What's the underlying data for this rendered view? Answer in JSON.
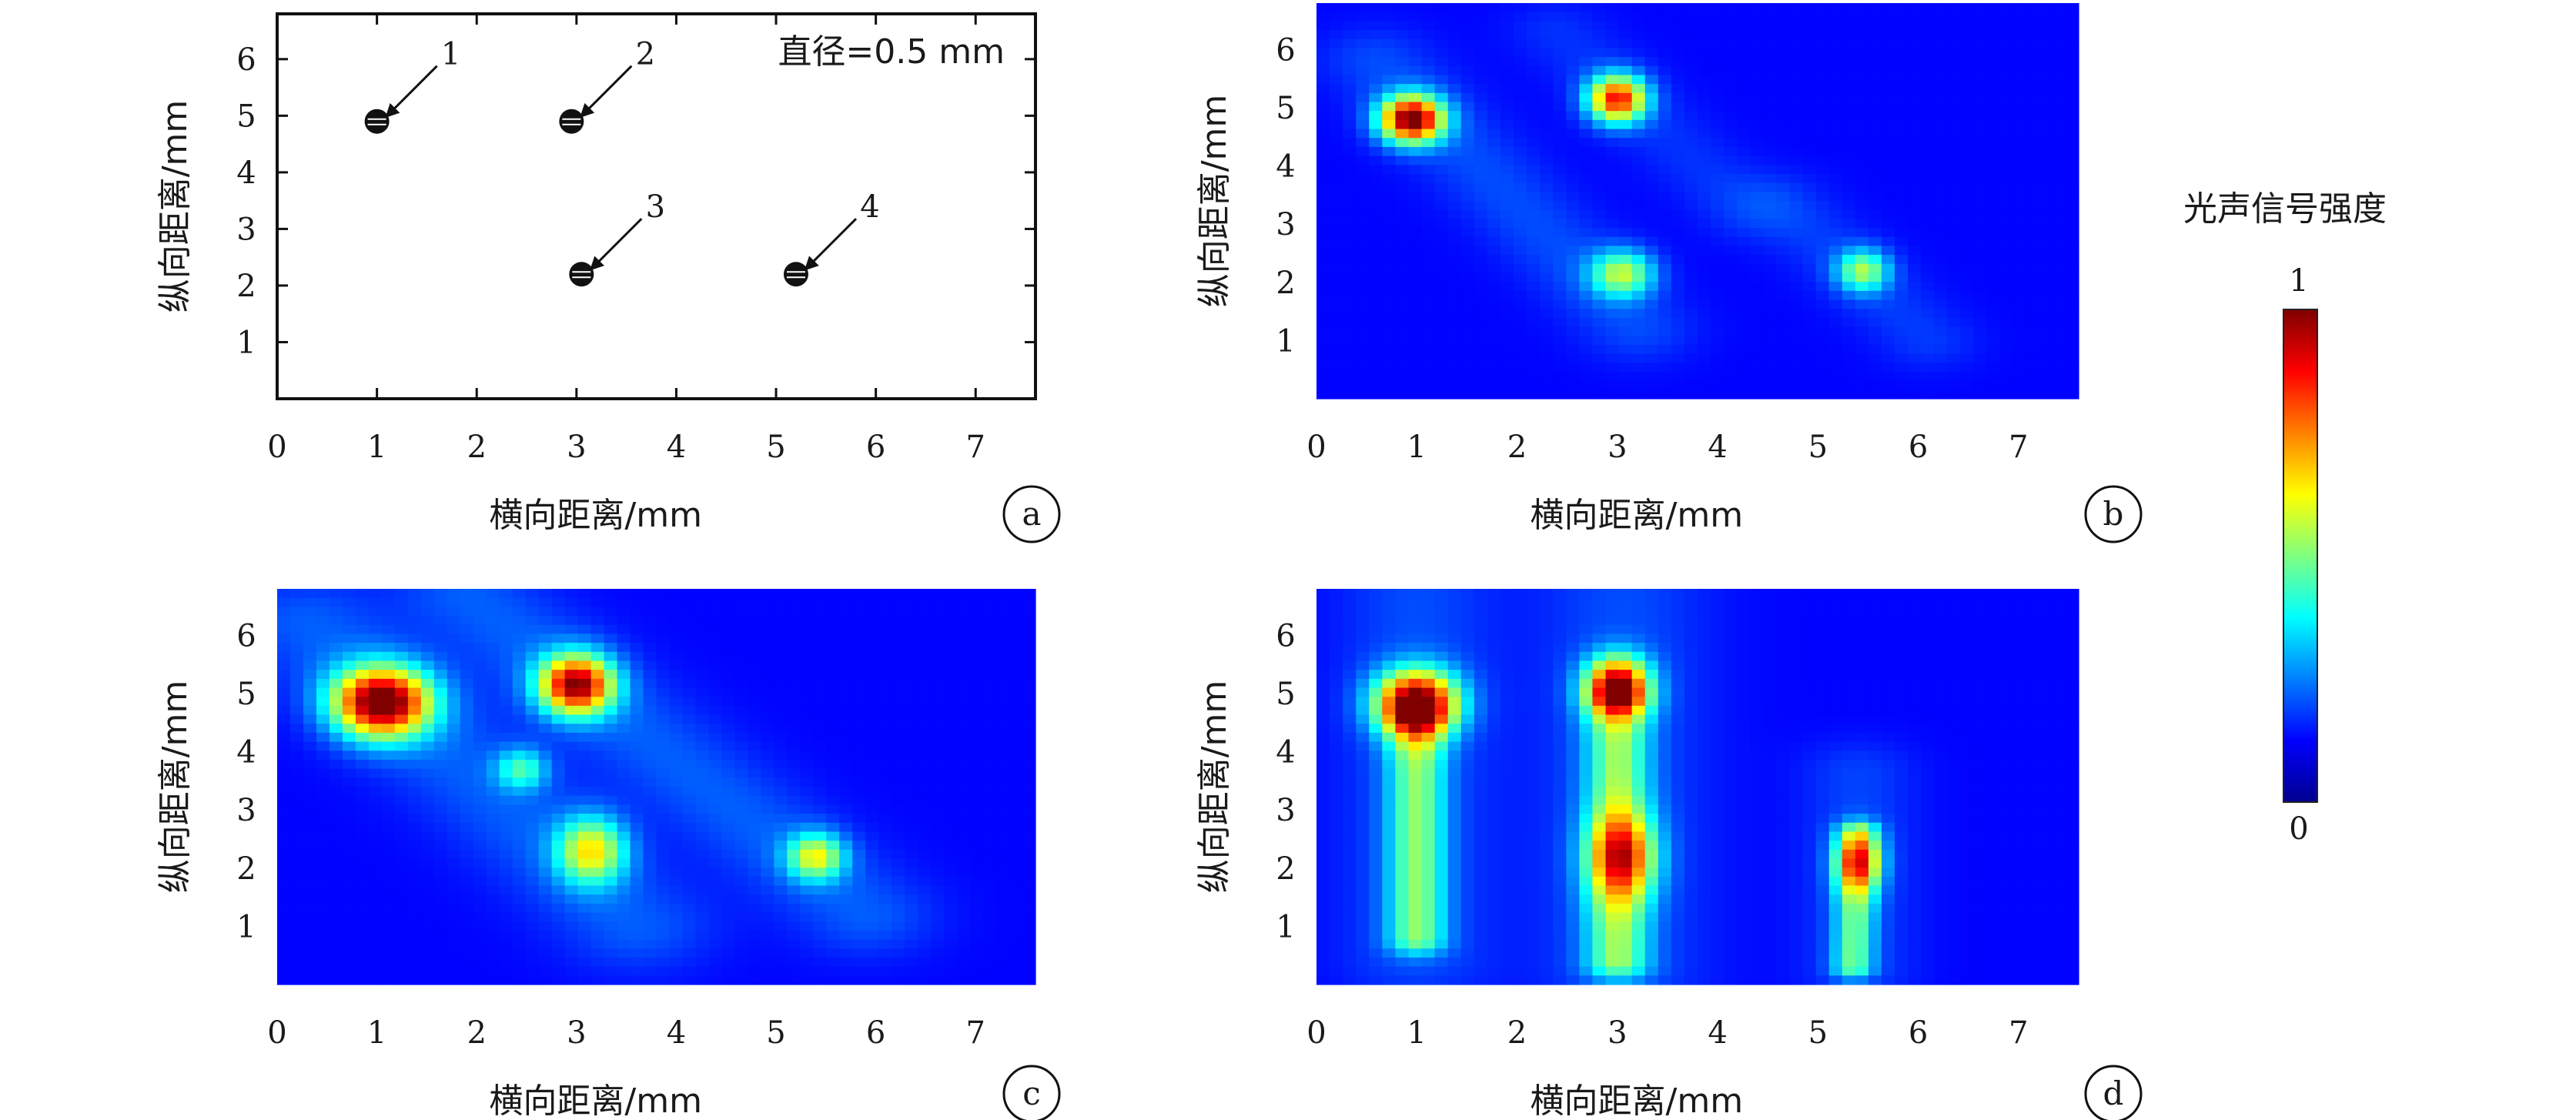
{
  "figure": {
    "colorbar": {
      "title": "光声信号强度",
      "max_label": "1",
      "min_label": "0",
      "colormap": "jet"
    }
  },
  "chart_data": [
    {
      "type": "scatter",
      "panel_label": "a",
      "xlabel": "横向距离/mm",
      "ylabel": "纵向距离/mm",
      "xlim": [
        0,
        7.6
      ],
      "ylim": [
        0,
        6.8
      ],
      "xticks": [
        "0",
        "1",
        "2",
        "3",
        "4",
        "5",
        "6",
        "7"
      ],
      "yticks": [
        "1",
        "2",
        "3",
        "4",
        "5",
        "6"
      ],
      "annotation": "直径=0.5 mm",
      "points": [
        {
          "label": "1",
          "x": 1.0,
          "y": 4.9
        },
        {
          "label": "2",
          "x": 2.95,
          "y": 4.9
        },
        {
          "label": "3",
          "x": 3.05,
          "y": 2.2
        },
        {
          "label": "4",
          "x": 5.2,
          "y": 2.2
        }
      ]
    },
    {
      "type": "heatmap",
      "panel_label": "b",
      "xlabel": "横向距离/mm",
      "ylabel": "纵向距离/mm",
      "xlim": [
        0,
        7.6
      ],
      "ylim": [
        0,
        6.8
      ],
      "xticks": [
        "0",
        "1",
        "2",
        "3",
        "4",
        "5",
        "6",
        "7"
      ],
      "yticks": [
        "1",
        "2",
        "3",
        "4",
        "5",
        "6"
      ],
      "blobs": [
        {
          "x": 0.95,
          "y": 4.8,
          "sx": 0.22,
          "sy": 0.28,
          "amp": 0.98
        },
        {
          "x": 3.0,
          "y": 5.15,
          "sx": 0.2,
          "sy": 0.28,
          "amp": 0.8
        },
        {
          "x": 3.05,
          "y": 2.15,
          "sx": 0.22,
          "sy": 0.28,
          "amp": 0.45
        },
        {
          "x": 5.45,
          "y": 2.2,
          "sx": 0.18,
          "sy": 0.25,
          "amp": 0.42
        }
      ],
      "bands": [
        {
          "x1": 0.6,
          "y1": 5.8,
          "x2": 3.2,
          "y2": 1.2,
          "w": 0.4,
          "amp": 0.08
        },
        {
          "x1": 2.4,
          "y1": 6.3,
          "x2": 4.3,
          "y2": 3.2,
          "w": 0.35,
          "amp": 0.05
        },
        {
          "x1": 4.6,
          "y1": 3.4,
          "x2": 6.1,
          "y2": 1.0,
          "w": 0.35,
          "amp": 0.06
        }
      ]
    },
    {
      "type": "heatmap",
      "panel_label": "c",
      "xlabel": "横向距离/mm",
      "ylabel": "纵向距离/mm",
      "xlim": [
        0,
        7.6
      ],
      "ylim": [
        0,
        6.8
      ],
      "xticks": [
        "0",
        "1",
        "2",
        "3",
        "4",
        "5",
        "6",
        "7"
      ],
      "yticks": [
        "1",
        "2",
        "3",
        "4",
        "5",
        "6"
      ],
      "blobs": [
        {
          "x": 1.05,
          "y": 4.85,
          "sx": 0.34,
          "sy": 0.42,
          "amp": 1.0
        },
        {
          "x": 3.0,
          "y": 5.15,
          "sx": 0.26,
          "sy": 0.36,
          "amp": 0.9
        },
        {
          "x": 3.15,
          "y": 2.3,
          "sx": 0.24,
          "sy": 0.4,
          "amp": 0.52
        },
        {
          "x": 5.4,
          "y": 2.2,
          "sx": 0.2,
          "sy": 0.28,
          "amp": 0.48
        },
        {
          "x": 2.45,
          "y": 3.7,
          "sx": 0.18,
          "sy": 0.25,
          "amp": 0.3
        }
      ],
      "bands": [
        {
          "x1": 0.3,
          "y1": 6.2,
          "x2": 3.6,
          "y2": 1.0,
          "w": 0.55,
          "amp": 0.1
        },
        {
          "x1": 1.9,
          "y1": 6.7,
          "x2": 5.9,
          "y2": 1.2,
          "w": 0.5,
          "amp": 0.1
        }
      ]
    },
    {
      "type": "heatmap",
      "panel_label": "d",
      "xlabel": "横向距离/mm",
      "ylabel": "纵向距离/mm",
      "xlim": [
        0,
        7.6
      ],
      "ylim": [
        0,
        6.8
      ],
      "xticks": [
        "0",
        "1",
        "2",
        "3",
        "4",
        "5",
        "6",
        "7"
      ],
      "yticks": [
        "1",
        "2",
        "3",
        "4",
        "5",
        "6"
      ],
      "blobs": [
        {
          "x": 1.0,
          "y": 4.85,
          "sx": 0.28,
          "sy": 0.38,
          "amp": 1.0
        },
        {
          "x": 3.0,
          "y": 5.15,
          "sx": 0.22,
          "sy": 0.34,
          "amp": 0.9
        },
        {
          "x": 3.05,
          "y": 2.2,
          "sx": 0.24,
          "sy": 0.5,
          "amp": 0.5
        },
        {
          "x": 5.4,
          "y": 2.1,
          "sx": 0.16,
          "sy": 0.35,
          "amp": 0.5
        }
      ],
      "bands": [
        {
          "x1": 1.0,
          "y1": 4.5,
          "x2": 1.0,
          "y2": 0.8,
          "w": 0.2,
          "amp": 0.36
        },
        {
          "x1": 3.0,
          "y1": 4.8,
          "x2": 3.0,
          "y2": 0.4,
          "w": 0.22,
          "amp": 0.38
        },
        {
          "x1": 5.4,
          "y1": 2.6,
          "x2": 5.35,
          "y2": 0.3,
          "w": 0.14,
          "amp": 0.34
        },
        {
          "x1": 1.0,
          "y1": 6.6,
          "x2": 1.0,
          "y2": 0.5,
          "w": 0.55,
          "amp": 0.08
        },
        {
          "x1": 3.05,
          "y1": 6.6,
          "x2": 3.05,
          "y2": 0.3,
          "w": 0.6,
          "amp": 0.08
        },
        {
          "x1": 5.4,
          "y1": 3.6,
          "x2": 5.4,
          "y2": 0.3,
          "w": 0.4,
          "amp": 0.07
        }
      ]
    }
  ]
}
